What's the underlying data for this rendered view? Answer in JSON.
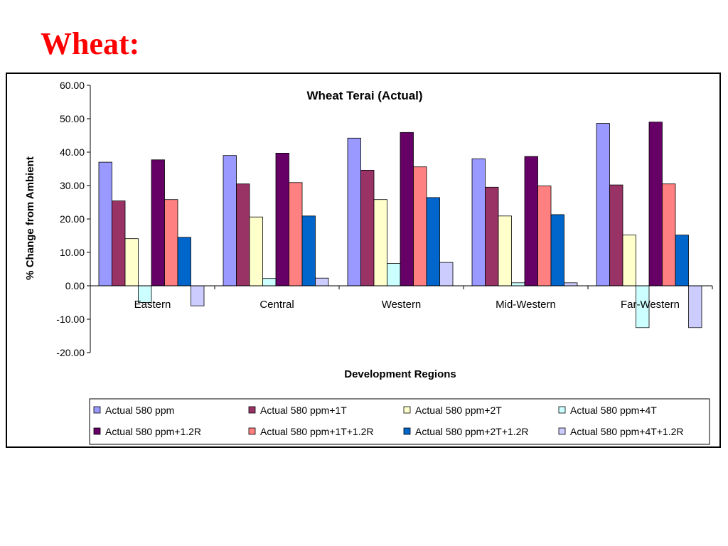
{
  "slide": {
    "title": "Wheat:"
  },
  "chart_data": {
    "type": "bar",
    "title": "Wheat Terai (Actual)",
    "xlabel": "Development Regions",
    "ylabel": "% Change from Ambient",
    "ylim": [
      -20,
      60
    ],
    "yticks": [
      "60.00",
      "50.00",
      "40.00",
      "30.00",
      "20.00",
      "10.00",
      "0.00",
      "-10.00",
      "-20.00"
    ],
    "ytick_values": [
      60,
      50,
      40,
      30,
      20,
      10,
      0,
      -10,
      -20
    ],
    "grid": false,
    "legend_position": "bottom",
    "categories": [
      "Eastern",
      "Central",
      "Western",
      "Mid-Western",
      "Far-Western"
    ],
    "series": [
      {
        "name": "Actual 580 ppm",
        "color": "#9999ff",
        "values": [
          37.0,
          39.0,
          44.2,
          38.0,
          48.6
        ]
      },
      {
        "name": "Actual 580 ppm+1T",
        "color": "#993366",
        "values": [
          25.4,
          30.5,
          34.6,
          29.5,
          30.2
        ]
      },
      {
        "name": "Actual 580 ppm+2T",
        "color": "#ffffcc",
        "values": [
          14.1,
          20.6,
          25.8,
          20.9,
          15.2
        ]
      },
      {
        "name": "Actual 580 ppm+4T",
        "color": "#ccffff",
        "values": [
          -5.0,
          2.2,
          6.7,
          0.9,
          -12.5
        ]
      },
      {
        "name": "Actual 580 ppm+1.2R",
        "color": "#660066",
        "values": [
          37.7,
          39.7,
          45.9,
          38.7,
          49.0
        ]
      },
      {
        "name": "Actual 580 ppm+1T+1.2R",
        "color": "#ff8080",
        "values": [
          25.8,
          30.9,
          35.6,
          29.9,
          30.5
        ]
      },
      {
        "name": "Actual 580 ppm+2T+1.2R",
        "color": "#0066cc",
        "values": [
          14.5,
          20.9,
          26.4,
          21.3,
          15.2
        ]
      },
      {
        "name": "Actual 580 ppm+4T+1.2R",
        "color": "#ccccff",
        "values": [
          -6.0,
          2.3,
          7.0,
          0.9,
          -12.5
        ]
      }
    ]
  }
}
